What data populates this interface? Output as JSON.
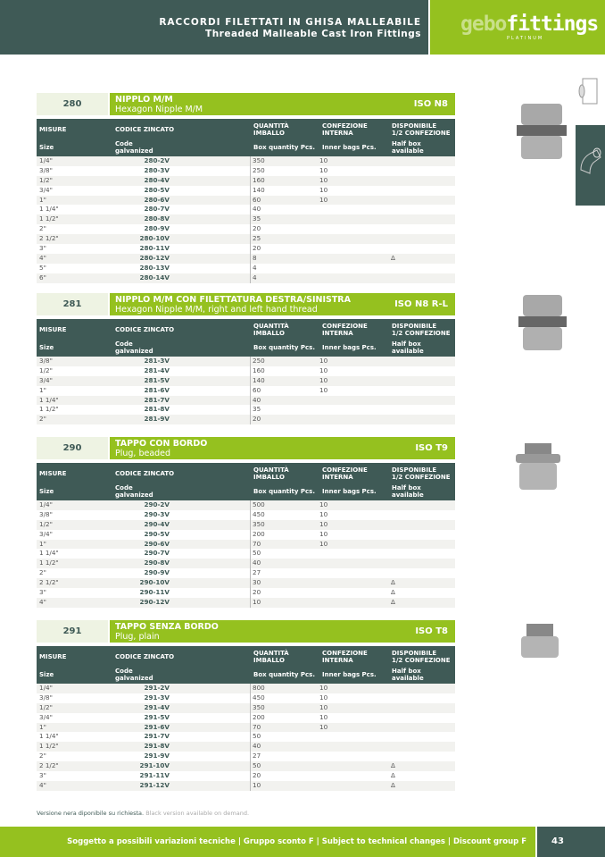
{
  "header": {
    "title_it": "RACCORDI FILETTATI IN GHISA MALLEABILE",
    "title_en": "Threaded Malleable Cast Iron Fittings",
    "brand": "gebofittings",
    "brand_a": "gebo",
    "brand_b": "fittings",
    "brand_sub": "PLATINUM"
  },
  "columns": {
    "size_it": "MISURE",
    "size_en": "Size",
    "code_it": "CODICE ZINCATO",
    "code_en1": "Code",
    "code_en2": "galvanized",
    "qty_it1": "QUANTITÀ",
    "qty_it2": "IMBALLO",
    "qty_en": "Box quantity Pcs.",
    "inner_it1": "CONFEZIONE",
    "inner_it2": "INTERNA",
    "inner_en": "Inner bags Pcs.",
    "half_it1": "DISPONIBILE",
    "half_it2": "1/2 CONFEZIONE",
    "half_en1": "Half box",
    "half_en2": "available"
  },
  "sections": [
    {
      "num": "280",
      "title_it": "NIPPLO M/M",
      "title_en": "Hexagon Nipple M/M",
      "iso": "ISO N8",
      "rows": [
        [
          "1/4\"",
          "280-2V",
          "350",
          "10",
          ""
        ],
        [
          "3/8\"",
          "280-3V",
          "250",
          "10",
          ""
        ],
        [
          "1/2\"",
          "280-4V",
          "160",
          "10",
          ""
        ],
        [
          "3/4\"",
          "280-5V",
          "140",
          "10",
          ""
        ],
        [
          "1\"",
          "280-6V",
          "60",
          "10",
          ""
        ],
        [
          "1 1/4\"",
          "280-7V",
          "40",
          "",
          ""
        ],
        [
          "1 1/2\"",
          "280-8V",
          "35",
          "",
          ""
        ],
        [
          "2\"",
          "280-9V",
          "20",
          "",
          ""
        ],
        [
          "2 1/2\"",
          "280-10V",
          "25",
          "",
          ""
        ],
        [
          "3\"",
          "280-11V",
          "20",
          "",
          ""
        ],
        [
          "4\"",
          "280-12V",
          "8",
          "",
          "Δ"
        ],
        [
          "5\"",
          "280-13V",
          "4",
          "",
          ""
        ],
        [
          "6\"",
          "280-14V",
          "4",
          "",
          ""
        ]
      ]
    },
    {
      "num": "281",
      "title_it": "NIPPLO M/M CON FILETTATURA DESTRA/SINISTRA",
      "title_en": "Hexagon Nipple M/M, right and left hand thread",
      "iso": "ISO N8 R-L",
      "rows": [
        [
          "3/8\"",
          "281-3V",
          "250",
          "10",
          ""
        ],
        [
          "1/2\"",
          "281-4V",
          "160",
          "10",
          ""
        ],
        [
          "3/4\"",
          "281-5V",
          "140",
          "10",
          ""
        ],
        [
          "1\"",
          "281-6V",
          "60",
          "10",
          ""
        ],
        [
          "1 1/4\"",
          "281-7V",
          "40",
          "",
          ""
        ],
        [
          "1 1/2\"",
          "281-8V",
          "35",
          "",
          ""
        ],
        [
          "2\"",
          "281-9V",
          "20",
          "",
          ""
        ]
      ]
    },
    {
      "num": "290",
      "title_it": "TAPPO CON BORDO",
      "title_en": "Plug, beaded",
      "iso": "ISO T9",
      "rows": [
        [
          "1/4\"",
          "290-2V",
          "500",
          "10",
          ""
        ],
        [
          "3/8\"",
          "290-3V",
          "450",
          "10",
          ""
        ],
        [
          "1/2\"",
          "290-4V",
          "350",
          "10",
          ""
        ],
        [
          "3/4\"",
          "290-5V",
          "200",
          "10",
          ""
        ],
        [
          "1\"",
          "290-6V",
          "70",
          "10",
          ""
        ],
        [
          "1 1/4\"",
          "290-7V",
          "50",
          "",
          ""
        ],
        [
          "1 1/2\"",
          "290-8V",
          "40",
          "",
          ""
        ],
        [
          "2\"",
          "290-9V",
          "27",
          "",
          ""
        ],
        [
          "2 1/2\"",
          "290-10V",
          "30",
          "",
          "Δ"
        ],
        [
          "3\"",
          "290-11V",
          "20",
          "",
          "Δ"
        ],
        [
          "4\"",
          "290-12V",
          "10",
          "",
          "Δ"
        ]
      ]
    },
    {
      "num": "291",
      "title_it": "TAPPO SENZA BORDO",
      "title_en": "Plug, plain",
      "iso": "ISO T8",
      "rows": [
        [
          "1/4\"",
          "291-2V",
          "800",
          "10",
          ""
        ],
        [
          "3/8\"",
          "291-3V",
          "450",
          "10",
          ""
        ],
        [
          "1/2\"",
          "291-4V",
          "350",
          "10",
          ""
        ],
        [
          "3/4\"",
          "291-5V",
          "200",
          "10",
          ""
        ],
        [
          "1\"",
          "291-6V",
          "70",
          "10",
          ""
        ],
        [
          "1 1/4\"",
          "291-7V",
          "50",
          "",
          ""
        ],
        [
          "1 1/2\"",
          "291-8V",
          "40",
          "",
          ""
        ],
        [
          "2\"",
          "291-9V",
          "27",
          "",
          ""
        ],
        [
          "2 1/2\"",
          "291-10V",
          "50",
          "",
          "Δ"
        ],
        [
          "3\"",
          "291-11V",
          "20",
          "",
          "Δ"
        ],
        [
          "4\"",
          "291-12V",
          "10",
          "",
          "Δ"
        ]
      ]
    }
  ],
  "note": {
    "it": "Versione nera diponibile su richiesta.",
    "en": "Black version available on demand."
  },
  "footer": {
    "text": "Soggetto a possibili variazioni tecniche  |  Gruppo sconto F  |  Subject to technical changes  |  Discount group F",
    "page": "43"
  },
  "colors": {
    "dark": "#3f5a56",
    "green": "#95c11f"
  }
}
